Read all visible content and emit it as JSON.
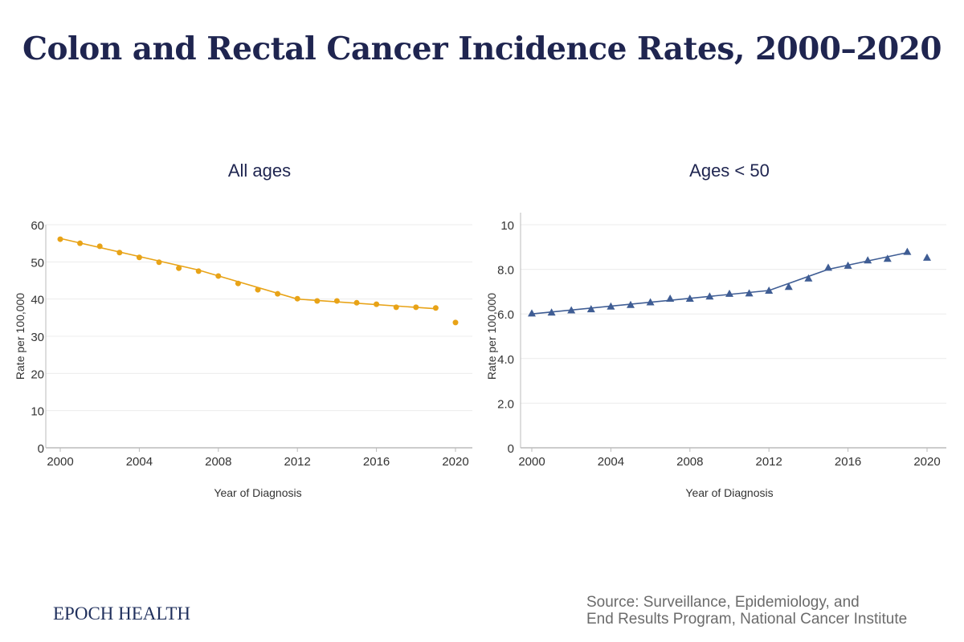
{
  "title": "Colon and Rectal Cancer Incidence Rates, 2000–2020",
  "footer": {
    "logo": "EPOCH HEALTH",
    "source_line1": "Source: Surveillance, Epidemiology, and",
    "source_line2": "End Results Program, National Cancer Institute"
  },
  "chart_data": [
    {
      "type": "line",
      "title": "All ages",
      "xlabel": "Year of Diagnosis",
      "ylabel": "Rate per 100,000",
      "xlim": [
        2000,
        2020
      ],
      "ylim": [
        0,
        60
      ],
      "xticks": [
        "2000",
        "2004",
        "2008",
        "2012",
        "2016",
        "2020"
      ],
      "yticks": [
        "0",
        "10",
        "20",
        "30",
        "40",
        "50",
        "60"
      ],
      "grid": true,
      "color": "#e8a317",
      "marker": "circle",
      "x": [
        2000,
        2001,
        2002,
        2003,
        2004,
        2005,
        2006,
        2007,
        2008,
        2009,
        2010,
        2011,
        2012,
        2013,
        2014,
        2015,
        2016,
        2017,
        2018,
        2019,
        2020
      ],
      "observed": [
        56.1,
        55.0,
        54.2,
        52.5,
        51.2,
        49.9,
        48.3,
        47.5,
        46.2,
        44.2,
        42.5,
        41.4,
        40.1,
        39.5,
        39.5,
        39.0,
        38.6,
        37.8,
        37.8,
        37.6,
        33.7
      ],
      "trend": {
        "x": [
          2000,
          2007,
          2012,
          2019
        ],
        "y": [
          56.3,
          47.8,
          40.0,
          37.4
        ]
      }
    },
    {
      "type": "line",
      "title": "Ages < 50",
      "xlabel": "Year of Diagnosis",
      "ylabel": "Rate per 100,000",
      "xlim": [
        2000,
        2020
      ],
      "ylim": [
        0,
        10.5
      ],
      "xticks": [
        "2000",
        "2004",
        "2008",
        "2012",
        "2016",
        "2020"
      ],
      "yticks": [
        "0",
        "2.0",
        "4.0",
        "6.0",
        "8.0",
        "10"
      ],
      "grid": true,
      "color": "#3f5d94",
      "marker": "triangle",
      "x": [
        2000,
        2001,
        2002,
        2003,
        2004,
        2005,
        2006,
        2007,
        2008,
        2009,
        2010,
        2011,
        2012,
        2013,
        2014,
        2015,
        2016,
        2017,
        2018,
        2019,
        2020
      ],
      "observed": [
        6.03,
        6.07,
        6.17,
        6.22,
        6.34,
        6.41,
        6.53,
        6.69,
        6.69,
        6.79,
        6.91,
        6.93,
        7.05,
        7.22,
        7.6,
        8.08,
        8.17,
        8.41,
        8.48,
        8.79,
        8.53
      ],
      "trend": {
        "x": [
          2000,
          2012,
          2015,
          2019
        ],
        "y": [
          6.0,
          7.05,
          8.0,
          8.75
        ]
      }
    }
  ]
}
